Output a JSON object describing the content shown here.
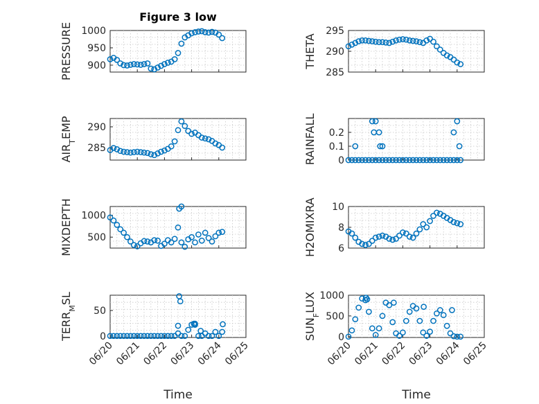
{
  "figure": {
    "title": "Figure 3 low",
    "marker_color": "#0072bd",
    "x_date_ticks": [
      "06/20",
      "06/21",
      "06/22",
      "06/23",
      "06/24",
      "06/25"
    ],
    "x_label": "Time"
  },
  "chart_data": [
    {
      "type": "scatter",
      "id": "pressure",
      "ylabel": "PRESSURE",
      "ylim": [
        880,
        1000
      ],
      "yticks": [
        900,
        950,
        1000
      ],
      "grid": true,
      "x": [
        "2019-06-20T00:00",
        "2019-06-20T03:00",
        "2019-06-20T06:00",
        "2019-06-20T09:00",
        "2019-06-20T12:00",
        "2019-06-20T15:00",
        "2019-06-20T18:00",
        "2019-06-20T21:00",
        "2019-06-21T00:00",
        "2019-06-21T03:00",
        "2019-06-21T06:00",
        "2019-06-21T09:00",
        "2019-06-21T12:00",
        "2019-06-21T15:00",
        "2019-06-21T18:00",
        "2019-06-21T21:00",
        "2019-06-22T00:00",
        "2019-06-22T03:00",
        "2019-06-22T06:00",
        "2019-06-22T09:00",
        "2019-06-22T12:00",
        "2019-06-22T15:00",
        "2019-06-22T18:00",
        "2019-06-22T21:00",
        "2019-06-23T00:00",
        "2019-06-23T03:00",
        "2019-06-23T06:00",
        "2019-06-23T09:00",
        "2019-06-23T12:00",
        "2019-06-23T15:00",
        "2019-06-23T18:00",
        "2019-06-23T21:00",
        "2019-06-24T00:00",
        "2019-06-24T03:00"
      ],
      "y": [
        917,
        921,
        915,
        905,
        900,
        899,
        901,
        903,
        902,
        901,
        903,
        905,
        890,
        888,
        893,
        898,
        903,
        907,
        910,
        917,
        935,
        962,
        980,
        986,
        992,
        995,
        997,
        998,
        995,
        994,
        996,
        994,
        988,
        978
      ]
    },
    {
      "type": "scatter",
      "id": "theta",
      "ylabel": "THETA",
      "ylim": [
        285,
        295
      ],
      "yticks": [
        285,
        290,
        295
      ],
      "grid": true,
      "x": [
        "2019-06-20T00:00",
        "2019-06-20T03:00",
        "2019-06-20T06:00",
        "2019-06-20T09:00",
        "2019-06-20T12:00",
        "2019-06-20T15:00",
        "2019-06-20T18:00",
        "2019-06-20T21:00",
        "2019-06-21T00:00",
        "2019-06-21T03:00",
        "2019-06-21T06:00",
        "2019-06-21T09:00",
        "2019-06-21T12:00",
        "2019-06-21T15:00",
        "2019-06-21T18:00",
        "2019-06-21T21:00",
        "2019-06-22T00:00",
        "2019-06-22T03:00",
        "2019-06-22T06:00",
        "2019-06-22T09:00",
        "2019-06-22T12:00",
        "2019-06-22T15:00",
        "2019-06-22T18:00",
        "2019-06-22T21:00",
        "2019-06-23T00:00",
        "2019-06-23T03:00",
        "2019-06-23T06:00",
        "2019-06-23T09:00",
        "2019-06-23T12:00",
        "2019-06-23T15:00",
        "2019-06-23T18:00",
        "2019-06-23T21:00",
        "2019-06-24T00:00",
        "2019-06-24T03:00"
      ],
      "y": [
        291.2,
        291.6,
        292.0,
        292.4,
        292.6,
        292.6,
        292.5,
        292.4,
        292.3,
        292.2,
        292.2,
        292.1,
        292.0,
        292.3,
        292.6,
        292.8,
        292.9,
        292.8,
        292.6,
        292.5,
        292.4,
        292.2,
        292.0,
        292.6,
        293.0,
        292.3,
        291.2,
        290.4,
        289.6,
        289.0,
        288.6,
        288.0,
        287.3,
        286.9
      ]
    },
    {
      "type": "scatter",
      "id": "air_temp",
      "ylabel": "AIR_TEMP",
      "ylabel_main": "AIR",
      "ylabel_sub": "T",
      "ylabel_rest": "EMP",
      "ylim": [
        282,
        292
      ],
      "yticks": [
        285,
        290
      ],
      "grid": true,
      "x": [
        "2019-06-20T00:00",
        "2019-06-20T03:00",
        "2019-06-20T06:00",
        "2019-06-20T09:00",
        "2019-06-20T12:00",
        "2019-06-20T15:00",
        "2019-06-20T18:00",
        "2019-06-20T21:00",
        "2019-06-21T00:00",
        "2019-06-21T03:00",
        "2019-06-21T06:00",
        "2019-06-21T09:00",
        "2019-06-21T12:00",
        "2019-06-21T15:00",
        "2019-06-21T18:00",
        "2019-06-21T21:00",
        "2019-06-22T00:00",
        "2019-06-22T03:00",
        "2019-06-22T06:00",
        "2019-06-22T09:00",
        "2019-06-22T12:00",
        "2019-06-22T15:00",
        "2019-06-22T18:00",
        "2019-06-22T21:00",
        "2019-06-23T00:00",
        "2019-06-23T03:00",
        "2019-06-23T06:00",
        "2019-06-23T09:00",
        "2019-06-23T12:00",
        "2019-06-23T15:00",
        "2019-06-23T18:00",
        "2019-06-23T21:00",
        "2019-06-24T00:00",
        "2019-06-24T03:00"
      ],
      "y": [
        284.4,
        284.9,
        284.6,
        284.2,
        284.0,
        283.9,
        283.8,
        283.9,
        284.0,
        283.9,
        283.8,
        283.7,
        283.4,
        283.2,
        283.6,
        284.0,
        284.3,
        284.7,
        285.3,
        286.5,
        289.2,
        291.3,
        290.2,
        289.0,
        288.3,
        288.6,
        288.0,
        287.4,
        287.2,
        287.0,
        286.6,
        286.0,
        285.6,
        285.0
      ]
    },
    {
      "type": "scatter",
      "id": "rainfall",
      "ylabel": "RAINFALL",
      "ylim": [
        0,
        0.3
      ],
      "yticks": [
        0,
        0.1,
        0.2
      ],
      "grid": true,
      "x": [
        "2019-06-20T00:00",
        "2019-06-20T03:00",
        "2019-06-20T06:00",
        "2019-06-20T09:00",
        "2019-06-20T12:00",
        "2019-06-20T15:00",
        "2019-06-20T18:00",
        "2019-06-20T21:00",
        "2019-06-21T00:00",
        "2019-06-21T03:00",
        "2019-06-21T06:00",
        "2019-06-21T09:00",
        "2019-06-21T12:00",
        "2019-06-21T15:00",
        "2019-06-21T18:00",
        "2019-06-21T21:00",
        "2019-06-22T00:00",
        "2019-06-22T03:00",
        "2019-06-22T06:00",
        "2019-06-22T09:00",
        "2019-06-22T12:00",
        "2019-06-22T15:00",
        "2019-06-22T18:00",
        "2019-06-22T21:00",
        "2019-06-23T00:00",
        "2019-06-23T03:00",
        "2019-06-23T06:00",
        "2019-06-23T09:00",
        "2019-06-23T12:00",
        "2019-06-23T15:00",
        "2019-06-23T18:00",
        "2019-06-23T21:00",
        "2019-06-24T00:00",
        "2019-06-24T03:00",
        "2019-06-20T06:00",
        "2019-06-20T21:00",
        "2019-06-21T00:00",
        "2019-06-20T22:30",
        "2019-06-21T03:00",
        "2019-06-21T04:00",
        "2019-06-21T06:00",
        "2019-06-23T21:00",
        "2019-06-24T00:00",
        "2019-06-24T02:00"
      ],
      "y": [
        0,
        0,
        0,
        0,
        0,
        0,
        0,
        0,
        0,
        0,
        0,
        0,
        0,
        0,
        0,
        0,
        0,
        0,
        0,
        0,
        0,
        0,
        0,
        0,
        0,
        0,
        0,
        0,
        0,
        0,
        0,
        0,
        0,
        0,
        0.1,
        0.28,
        0.28,
        0.2,
        0.2,
        0.1,
        0.1,
        0.2,
        0.28,
        0.1
      ]
    },
    {
      "type": "scatter",
      "id": "mixdepth",
      "ylabel": "MIXDEPTH",
      "ylim": [
        250,
        1200
      ],
      "yticks": [
        500,
        1000
      ],
      "grid": true,
      "x": [
        "2019-06-20T00:00",
        "2019-06-20T03:00",
        "2019-06-20T06:00",
        "2019-06-20T09:00",
        "2019-06-20T12:00",
        "2019-06-20T15:00",
        "2019-06-20T18:00",
        "2019-06-20T21:00",
        "2019-06-21T00:00",
        "2019-06-21T03:00",
        "2019-06-21T06:00",
        "2019-06-21T09:00",
        "2019-06-21T12:00",
        "2019-06-21T15:00",
        "2019-06-21T18:00",
        "2019-06-21T21:00",
        "2019-06-22T00:00",
        "2019-06-22T03:00",
        "2019-06-22T06:00",
        "2019-06-22T09:00",
        "2019-06-22T12:00",
        "2019-06-22T15:00",
        "2019-06-22T18:00",
        "2019-06-22T21:00",
        "2019-06-23T00:00",
        "2019-06-23T03:00",
        "2019-06-23T06:00",
        "2019-06-23T09:00",
        "2019-06-23T12:00",
        "2019-06-23T15:00",
        "2019-06-23T18:00",
        "2019-06-23T21:00",
        "2019-06-24T00:00",
        "2019-06-24T03:00",
        "2019-06-22T13:00",
        "2019-06-22T15:00"
      ],
      "y": [
        950,
        880,
        780,
        680,
        600,
        500,
        400,
        320,
        290,
        360,
        410,
        400,
        380,
        430,
        420,
        300,
        350,
        430,
        380,
        460,
        720,
        380,
        280,
        450,
        500,
        380,
        560,
        420,
        600,
        480,
        400,
        520,
        600,
        620,
        1150,
        1200
      ]
    },
    {
      "type": "scatter",
      "id": "h2omixra",
      "ylabel": "H2OMIXRA",
      "ylim": [
        6,
        10
      ],
      "yticks": [
        6,
        8,
        10
      ],
      "grid": true,
      "x": [
        "2019-06-20T00:00",
        "2019-06-20T03:00",
        "2019-06-20T06:00",
        "2019-06-20T09:00",
        "2019-06-20T12:00",
        "2019-06-20T15:00",
        "2019-06-20T18:00",
        "2019-06-20T21:00",
        "2019-06-21T00:00",
        "2019-06-21T03:00",
        "2019-06-21T06:00",
        "2019-06-21T09:00",
        "2019-06-21T12:00",
        "2019-06-21T15:00",
        "2019-06-21T18:00",
        "2019-06-21T21:00",
        "2019-06-22T00:00",
        "2019-06-22T03:00",
        "2019-06-22T06:00",
        "2019-06-22T09:00",
        "2019-06-22T12:00",
        "2019-06-22T15:00",
        "2019-06-22T18:00",
        "2019-06-22T21:00",
        "2019-06-23T00:00",
        "2019-06-23T03:00",
        "2019-06-23T06:00",
        "2019-06-23T09:00",
        "2019-06-23T12:00",
        "2019-06-23T15:00",
        "2019-06-23T18:00",
        "2019-06-23T21:00",
        "2019-06-24T00:00",
        "2019-06-24T03:00"
      ],
      "y": [
        7.6,
        7.4,
        7.0,
        6.6,
        6.4,
        6.3,
        6.4,
        6.7,
        7.0,
        7.1,
        7.2,
        7.1,
        6.9,
        6.8,
        6.9,
        7.2,
        7.5,
        7.4,
        7.1,
        7.0,
        7.4,
        7.8,
        8.3,
        8.0,
        8.6,
        9.1,
        9.4,
        9.3,
        9.1,
        8.9,
        8.7,
        8.5,
        8.4,
        8.3
      ]
    },
    {
      "type": "scatter",
      "id": "terr_msl",
      "ylabel": "TERR_MSL",
      "ylabel_main": "TERR",
      "ylabel_sub": "M",
      "ylabel_rest": "SL",
      "ylim": [
        -3,
        80
      ],
      "yticks": [
        0,
        50
      ],
      "grid": true,
      "x": [
        "2019-06-20T00:00",
        "2019-06-20T03:00",
        "2019-06-20T06:00",
        "2019-06-20T09:00",
        "2019-06-20T12:00",
        "2019-06-20T15:00",
        "2019-06-20T18:00",
        "2019-06-20T21:00",
        "2019-06-21T00:00",
        "2019-06-21T03:00",
        "2019-06-21T06:00",
        "2019-06-21T09:00",
        "2019-06-21T12:00",
        "2019-06-21T15:00",
        "2019-06-21T18:00",
        "2019-06-21T21:00",
        "2019-06-22T00:00",
        "2019-06-22T03:00",
        "2019-06-22T06:00",
        "2019-06-22T09:00",
        "2019-06-22T12:00",
        "2019-06-22T15:00",
        "2019-06-22T18:00",
        "2019-06-22T21:00",
        "2019-06-23T00:00",
        "2019-06-23T03:00",
        "2019-06-23T06:00",
        "2019-06-23T09:00",
        "2019-06-23T12:00",
        "2019-06-23T15:00",
        "2019-06-23T18:00",
        "2019-06-23T21:00",
        "2019-06-24T00:00",
        "2019-06-24T03:00",
        "2019-06-22T13:00",
        "2019-06-22T14:00",
        "2019-06-22T12:00",
        "2019-06-23T02:00",
        "2019-06-23T03:00",
        "2019-06-24T03:30",
        "2019-06-23T08:00"
      ],
      "y": [
        0,
        0,
        0,
        0,
        0,
        0,
        0,
        0,
        0,
        0,
        0,
        0,
        0,
        0,
        0,
        0,
        0,
        0,
        0,
        0,
        5,
        0,
        0,
        12,
        22,
        22,
        0,
        0,
        5,
        0,
        0,
        8,
        0,
        8,
        78,
        68,
        20,
        24,
        24,
        23,
        10
      ]
    },
    {
      "type": "scatter",
      "id": "sun_flux",
      "ylabel": "SUN_FLUX",
      "ylabel_main": "SUN",
      "ylabel_sub": "F",
      "ylabel_rest": "LUX",
      "ylim": [
        -20,
        1000
      ],
      "yticks": [
        0,
        500,
        1000
      ],
      "grid": true,
      "x": [
        "2019-06-20T00:00",
        "2019-06-20T03:00",
        "2019-06-20T06:00",
        "2019-06-20T09:00",
        "2019-06-20T12:00",
        "2019-06-20T15:00",
        "2019-06-20T18:00",
        "2019-06-20T21:00",
        "2019-06-21T00:00",
        "2019-06-21T03:00",
        "2019-06-21T06:00",
        "2019-06-21T09:00",
        "2019-06-21T12:00",
        "2019-06-21T15:00",
        "2019-06-21T18:00",
        "2019-06-21T21:00",
        "2019-06-22T00:00",
        "2019-06-22T03:00",
        "2019-06-22T06:00",
        "2019-06-22T09:00",
        "2019-06-22T12:00",
        "2019-06-22T15:00",
        "2019-06-22T18:00",
        "2019-06-22T21:00",
        "2019-06-23T00:00",
        "2019-06-23T03:00",
        "2019-06-23T06:00",
        "2019-06-23T09:00",
        "2019-06-23T12:00",
        "2019-06-23T15:00",
        "2019-06-23T18:00",
        "2019-06-23T21:00",
        "2019-06-24T00:00",
        "2019-06-24T03:00",
        "2019-06-20T15:30",
        "2019-06-20T16:30",
        "2019-06-21T16:00",
        "2019-06-22T18:30",
        "2019-06-23T19:30"
      ],
      "y": [
        0,
        150,
        420,
        700,
        920,
        880,
        600,
        200,
        40,
        200,
        500,
        820,
        760,
        350,
        80,
        20,
        100,
        380,
        600,
        740,
        680,
        380,
        100,
        20,
        120,
        380,
        560,
        640,
        520,
        260,
        80,
        10,
        0,
        0,
        940,
        900,
        820,
        720,
        640
      ]
    }
  ]
}
